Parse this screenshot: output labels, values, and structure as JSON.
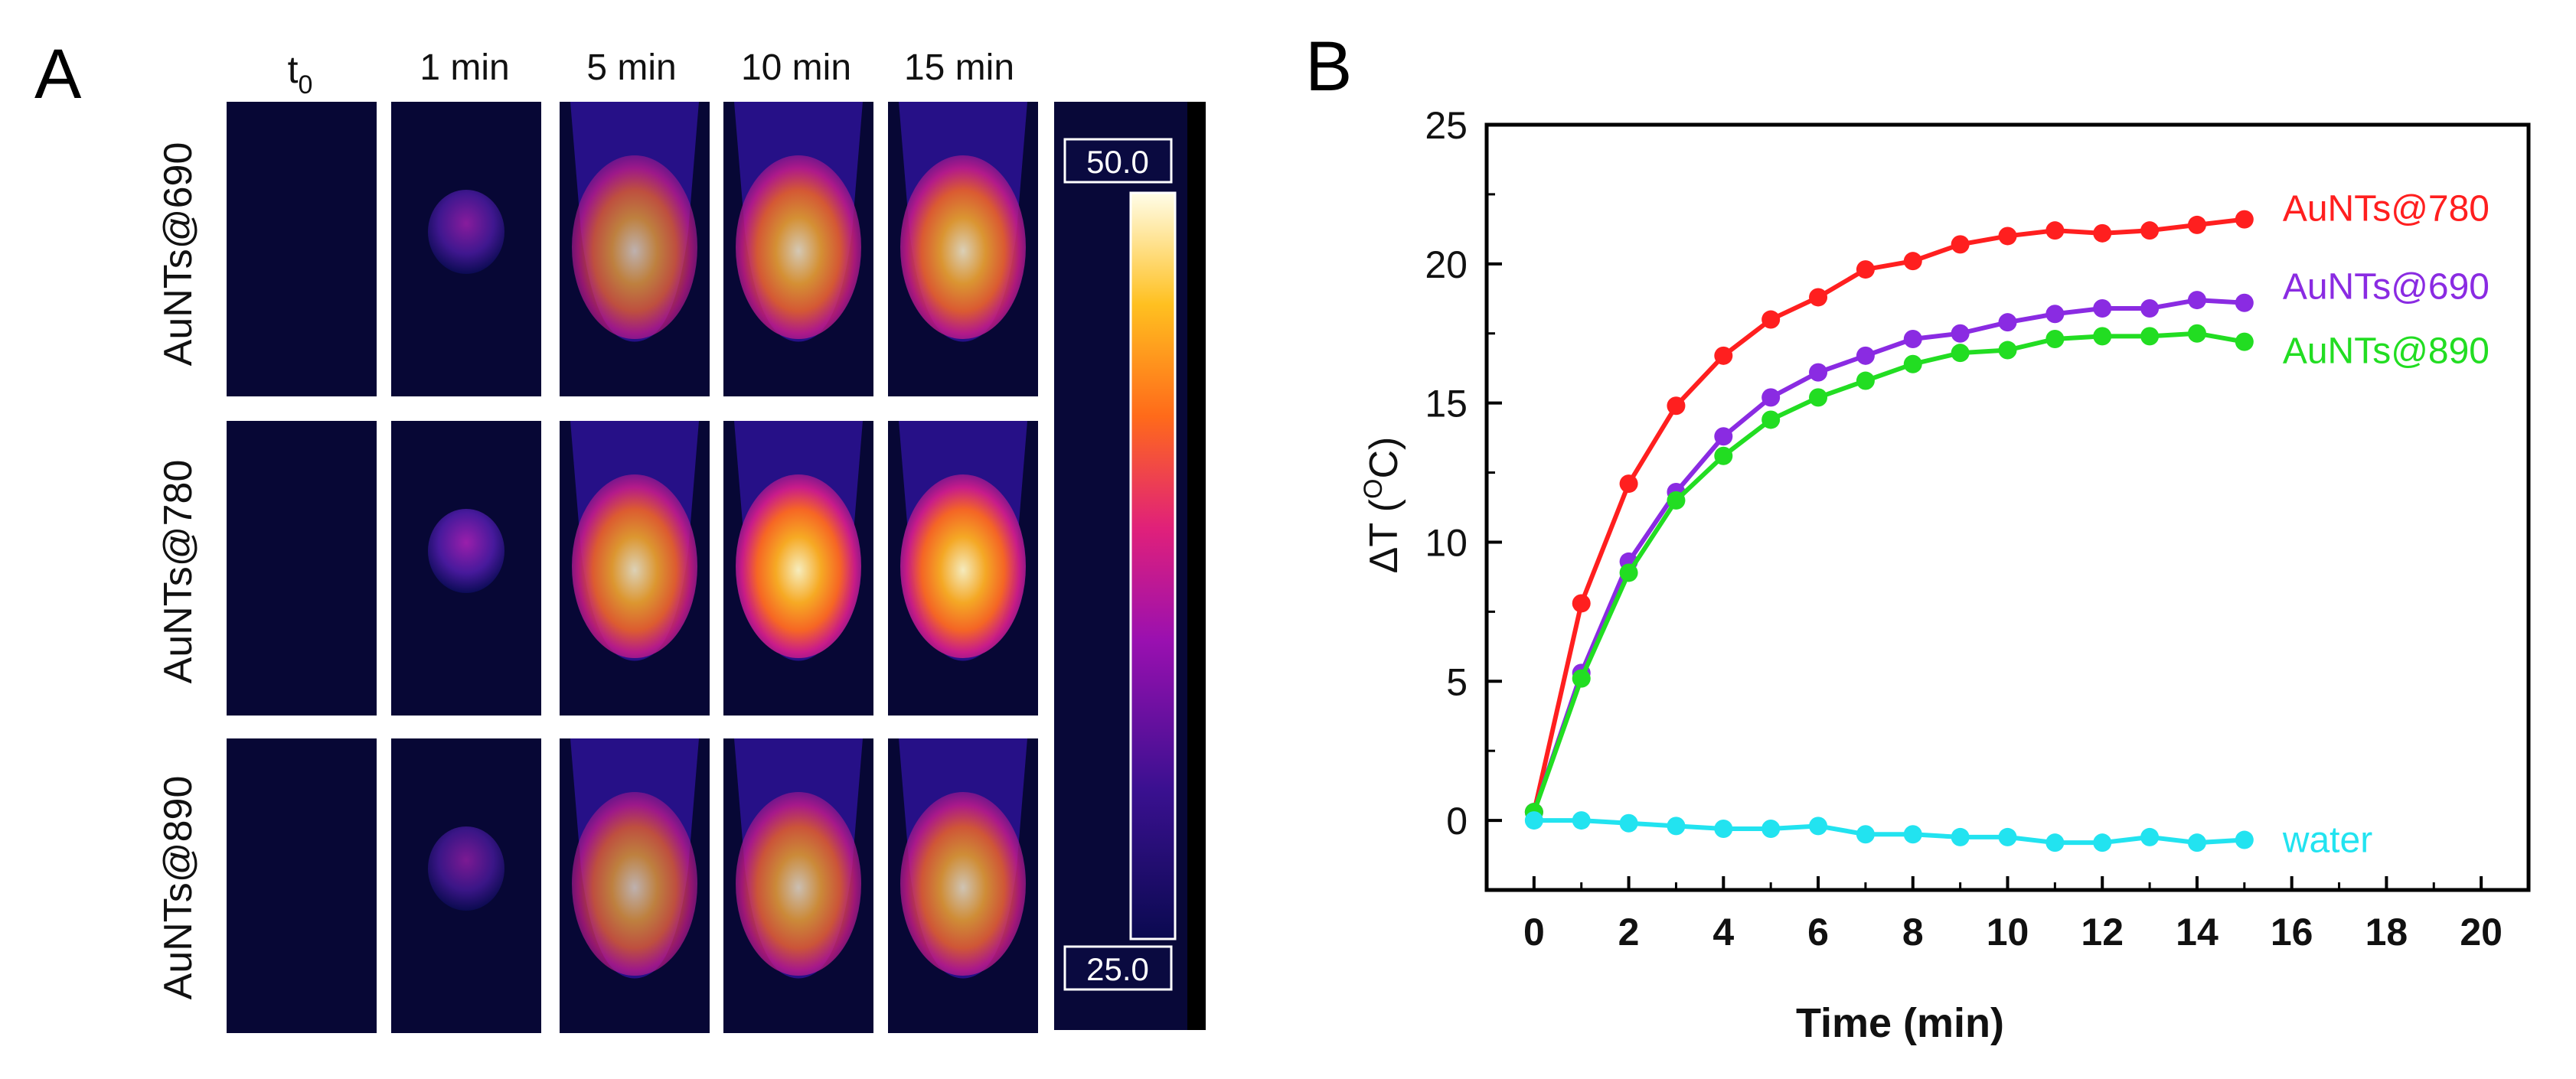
{
  "panel_a": {
    "label": "A",
    "time_labels": [
      "1 min",
      "5 min",
      "10 min",
      "15 min"
    ],
    "t0": {
      "base": "t",
      "sub": "0"
    },
    "row_labels": [
      "AuNTs@690",
      "AuNTs@780",
      "AuNTs@890"
    ],
    "colorbar": {
      "max_label": "50.0",
      "min_label": "25.0",
      "max": 50.0,
      "min": 25.0
    },
    "intensity": [
      [
        0,
        0.22,
        0.7,
        0.8,
        0.83
      ],
      [
        0,
        0.28,
        0.84,
        0.96,
        0.95
      ],
      [
        0,
        0.18,
        0.7,
        0.76,
        0.78
      ]
    ]
  },
  "chart_data": {
    "type": "line",
    "panel_label": "B",
    "xlabel": "Time (min)",
    "ylabel": {
      "prefix": "ΔT (",
      "sup": "O",
      "suffix": "C)"
    },
    "xlim": [
      -1,
      21
    ],
    "ylim": [
      -2.5,
      25
    ],
    "xticks": [
      0,
      2,
      4,
      6,
      8,
      10,
      12,
      14,
      16,
      18,
      20
    ],
    "yticks": [
      0,
      5,
      10,
      15,
      20,
      25
    ],
    "x": [
      0,
      1,
      2,
      3,
      4,
      5,
      6,
      7,
      8,
      9,
      10,
      11,
      12,
      13,
      14,
      15
    ],
    "series": [
      {
        "name": "AuNTs@780",
        "color": "#ff1f1f",
        "values": [
          0.3,
          7.8,
          12.1,
          14.9,
          16.7,
          18.0,
          18.8,
          19.8,
          20.1,
          20.7,
          21.0,
          21.2,
          21.1,
          21.2,
          21.4,
          21.6
        ]
      },
      {
        "name": "AuNTs@690",
        "color": "#8a2be2",
        "values": [
          0.3,
          5.3,
          9.3,
          11.8,
          13.8,
          15.2,
          16.1,
          16.7,
          17.3,
          17.5,
          17.9,
          18.2,
          18.4,
          18.4,
          18.7,
          18.6
        ]
      },
      {
        "name": "AuNTs@890",
        "color": "#22dd22",
        "values": [
          0.3,
          5.1,
          8.9,
          11.5,
          13.1,
          14.4,
          15.2,
          15.8,
          16.4,
          16.8,
          16.9,
          17.3,
          17.4,
          17.4,
          17.5,
          17.2
        ]
      },
      {
        "name": "water",
        "color": "#22e3f0",
        "values": [
          0.0,
          0.0,
          -0.1,
          -0.2,
          -0.3,
          -0.3,
          -0.2,
          -0.5,
          -0.5,
          -0.6,
          -0.6,
          -0.8,
          -0.8,
          -0.6,
          -0.8,
          -0.7
        ]
      }
    ]
  }
}
